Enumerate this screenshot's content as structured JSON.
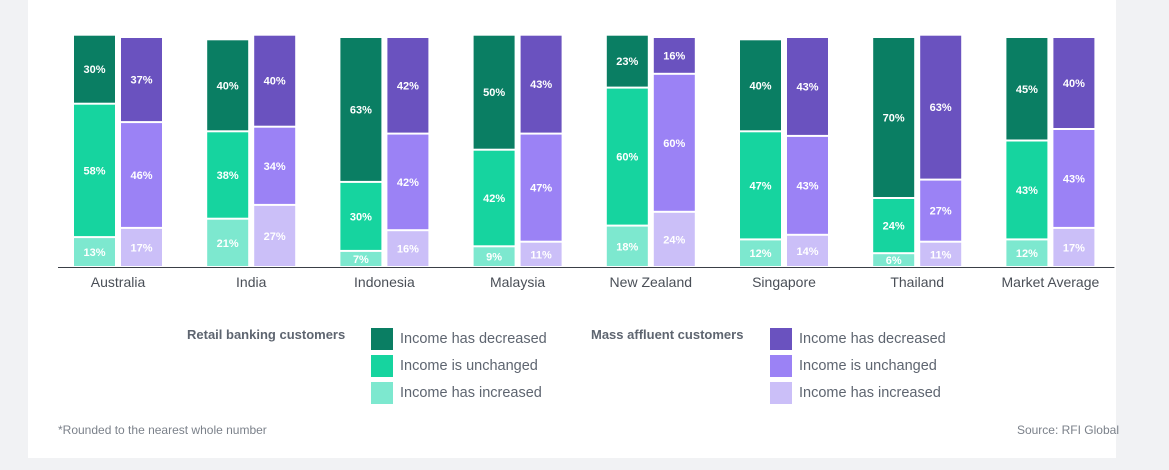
{
  "chart_data": {
    "type": "bar",
    "stacked": true,
    "grouped": true,
    "categories": [
      "Australia",
      "India",
      "Indonesia",
      "Malaysia",
      "New Zealand",
      "Singapore",
      "Thailand",
      "Market Average"
    ],
    "groups": [
      {
        "name": "Retail banking customers",
        "series": [
          {
            "name": "Income has increased",
            "values": [
              13,
              21,
              7,
              9,
              18,
              12,
              6,
              12
            ],
            "color": "#7de8cf"
          },
          {
            "name": "Income is unchanged",
            "values": [
              58,
              38,
              30,
              42,
              60,
              47,
              24,
              43
            ],
            "color": "#16d49f"
          },
          {
            "name": "Income has decreased",
            "values": [
              30,
              40,
              63,
              50,
              23,
              40,
              70,
              45
            ],
            "color": "#0a7e63"
          }
        ]
      },
      {
        "name": "Mass affluent customers",
        "series": [
          {
            "name": "Income has increased",
            "values": [
              17,
              27,
              16,
              11,
              24,
              14,
              11,
              17
            ],
            "color": "#cbbff8"
          },
          {
            "name": "Income is unchanged",
            "values": [
              46,
              34,
              42,
              47,
              60,
              43,
              27,
              43
            ],
            "color": "#9b82f5"
          },
          {
            "name": "Income has decreased",
            "values": [
              37,
              40,
              42,
              43,
              16,
              43,
              63,
              40
            ],
            "color": "#6a52bf"
          }
        ]
      }
    ],
    "value_suffix": "%"
  },
  "legend": {
    "retail_title": "Retail banking customers",
    "affluent_title": "Mass affluent customers",
    "retail_items": [
      {
        "label": "Income has decreased",
        "color": "#0a7e63"
      },
      {
        "label": "Income is unchanged",
        "color": "#16d49f"
      },
      {
        "label": "Income has increased",
        "color": "#7de8cf"
      }
    ],
    "affluent_items": [
      {
        "label": "Income has decreased",
        "color": "#6a52bf"
      },
      {
        "label": "Income is unchanged",
        "color": "#9b82f5"
      },
      {
        "label": "Income has increased",
        "color": "#cbbff8"
      }
    ]
  },
  "footnote": "*Rounded to the nearest whole number",
  "source": "Source: RFI Global"
}
